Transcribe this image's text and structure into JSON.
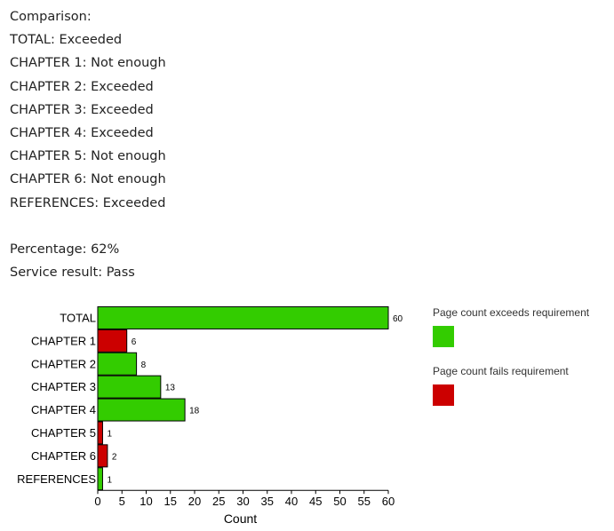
{
  "summary": {
    "heading": "Comparison:",
    "rows": [
      "TOTAL: Exceeded",
      "CHAPTER 1: Not enough",
      "CHAPTER 2: Exceeded",
      "CHAPTER 3: Exceeded",
      "CHAPTER 4: Exceeded",
      "CHAPTER 5: Not enough",
      "CHAPTER 6: Not enough",
      "REFERENCES: Exceeded"
    ],
    "percentage": "Percentage: 62%",
    "service_result": "Service result: Pass"
  },
  "legend": {
    "items": [
      {
        "label": "Page count exceeds requirement",
        "color": "#33cc00"
      },
      {
        "label": "Page count fails requirement",
        "color": "#cc0000"
      }
    ]
  },
  "chart_data": {
    "type": "bar",
    "orientation": "horizontal",
    "categories": [
      "TOTAL",
      "CHAPTER 1",
      "CHAPTER 2",
      "CHAPTER 3",
      "CHAPTER 4",
      "CHAPTER 5",
      "CHAPTER 6",
      "REFERENCES"
    ],
    "values": [
      60,
      6,
      8,
      13,
      18,
      1,
      2,
      1
    ],
    "status": [
      "exceeds",
      "fails",
      "exceeds",
      "exceeds",
      "exceeds",
      "fails",
      "fails",
      "exceeds"
    ],
    "colors": {
      "exceeds": "#33cc00",
      "fails": "#cc0000"
    },
    "data_labels": [
      "60",
      "6",
      "8",
      "13",
      "18",
      "1",
      "2",
      "1"
    ],
    "xlabel": "Count",
    "xlim": [
      0,
      60
    ],
    "xticks": [
      0,
      5,
      10,
      15,
      20,
      25,
      30,
      35,
      40,
      45,
      50,
      55,
      60
    ],
    "grid": false,
    "legend_position": "right"
  }
}
